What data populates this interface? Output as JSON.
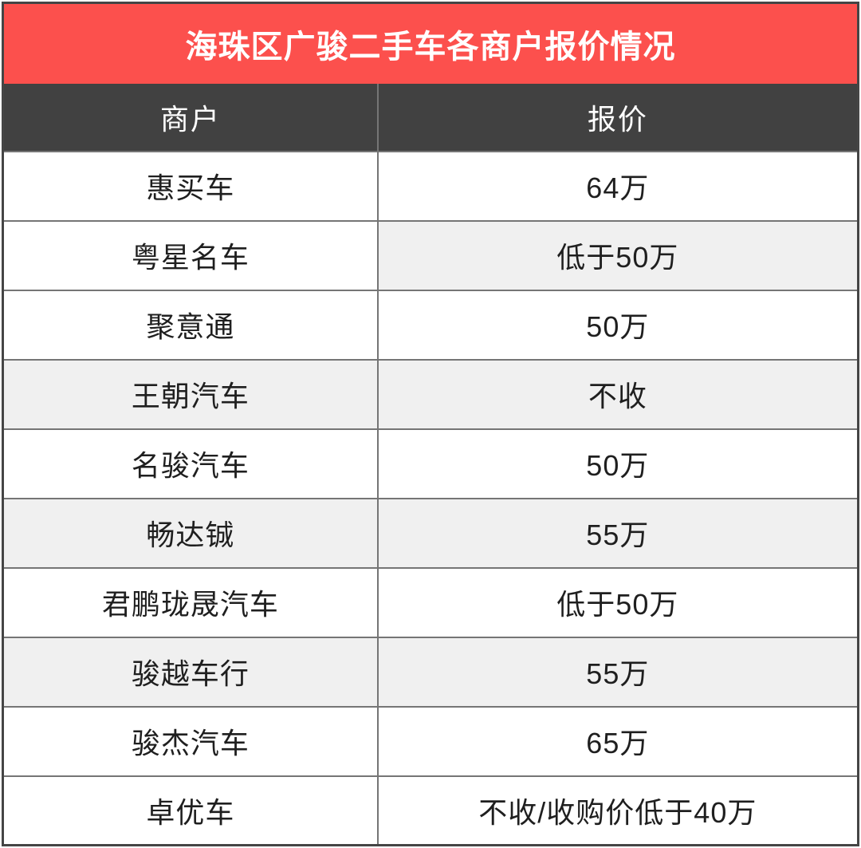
{
  "colors": {
    "banner_bg": "#fc504d",
    "banner_text": "#ffffff",
    "header_bg": "#414141",
    "header_text": "#ffffff",
    "stripe_bg": "#f0f0f0",
    "cell_text": "#1f1f1f",
    "border_outer": "#454545",
    "border_inner": "#757575"
  },
  "chart_data": {
    "type": "table",
    "title": "海珠区广骏二手车各商户报价情况",
    "columns": [
      {
        "key": "merchant",
        "label": "商户"
      },
      {
        "key": "quote",
        "label": "报价"
      }
    ],
    "rows": [
      {
        "merchant": "惠买车",
        "quote": "64万",
        "merchant_shaded": false,
        "quote_shaded": false
      },
      {
        "merchant": "粤星名车",
        "quote": "低于50万",
        "merchant_shaded": false,
        "quote_shaded": true
      },
      {
        "merchant": "聚意通",
        "quote": "50万",
        "merchant_shaded": false,
        "quote_shaded": false
      },
      {
        "merchant": "王朝汽车",
        "quote": "不收",
        "merchant_shaded": true,
        "quote_shaded": true
      },
      {
        "merchant": "名骏汽车",
        "quote": "50万",
        "merchant_shaded": false,
        "quote_shaded": false
      },
      {
        "merchant": "畅达铖",
        "quote": "55万",
        "merchant_shaded": true,
        "quote_shaded": true
      },
      {
        "merchant": "君鹏珑晟汽车",
        "quote": "低于50万",
        "merchant_shaded": false,
        "quote_shaded": false
      },
      {
        "merchant": "骏越车行",
        "quote": "55万",
        "merchant_shaded": true,
        "quote_shaded": true
      },
      {
        "merchant": "骏杰汽车",
        "quote": "65万",
        "merchant_shaded": false,
        "quote_shaded": false
      },
      {
        "merchant": "卓优车",
        "quote": "不收/收购价低于40万",
        "merchant_shaded": false,
        "quote_shaded": false
      }
    ]
  }
}
